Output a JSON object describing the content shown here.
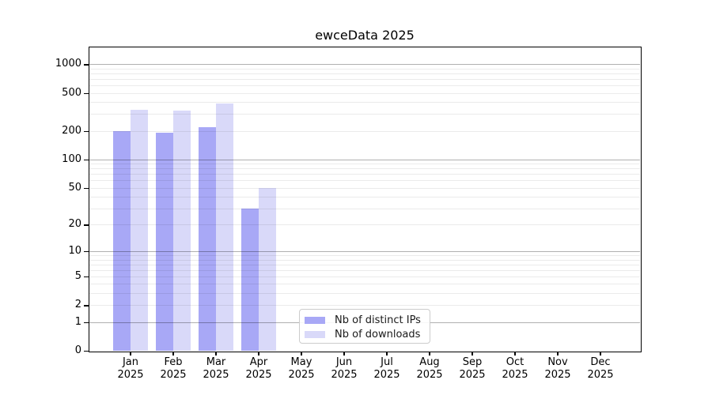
{
  "figure": {
    "title": "ewceData 2025"
  },
  "chart_data": {
    "type": "bar",
    "title": "ewceData 2025",
    "x_months": [
      "Jan",
      "Feb",
      "Mar",
      "Apr",
      "May",
      "Jun",
      "Jul",
      "Aug",
      "Sep",
      "Oct",
      "Nov",
      "Dec"
    ],
    "x_year_label": "2025",
    "series": [
      {
        "name": "Nb of distinct IPs",
        "color": "#a8a8f6",
        "values": [
          200,
          190,
          220,
          30,
          null,
          null,
          null,
          null,
          null,
          null,
          null,
          null
        ]
      },
      {
        "name": "Nb of downloads",
        "color": "#d9d9f9",
        "values": [
          335,
          325,
          390,
          50,
          null,
          null,
          null,
          null,
          null,
          null,
          null,
          null
        ]
      }
    ],
    "y_scale": "log10(value+1)",
    "ylim": [
      0,
      1500
    ],
    "y_ticks": [
      0,
      1,
      2,
      5,
      10,
      20,
      50,
      100,
      200,
      500,
      1000
    ],
    "y_major_gridlines": [
      1,
      10,
      100,
      1000
    ],
    "y_minor_gridlines": [
      2,
      3,
      4,
      5,
      6,
      7,
      8,
      9,
      20,
      30,
      40,
      50,
      60,
      70,
      80,
      90,
      200,
      300,
      400,
      500,
      600,
      700,
      800,
      900
    ],
    "grid": true,
    "legend_position": "inside-bottom-center",
    "xlabel": "",
    "ylabel": ""
  },
  "colors": {
    "ips_bar": "#a8a8f6",
    "downloads_bar": "#d9d9f9",
    "grid_major": "rgba(0,0,0,0.31)",
    "grid_minor": "rgba(0,0,0,0.08)",
    "spine": "#000000",
    "legend_border": "#cccccc",
    "background": "#ffffff"
  }
}
